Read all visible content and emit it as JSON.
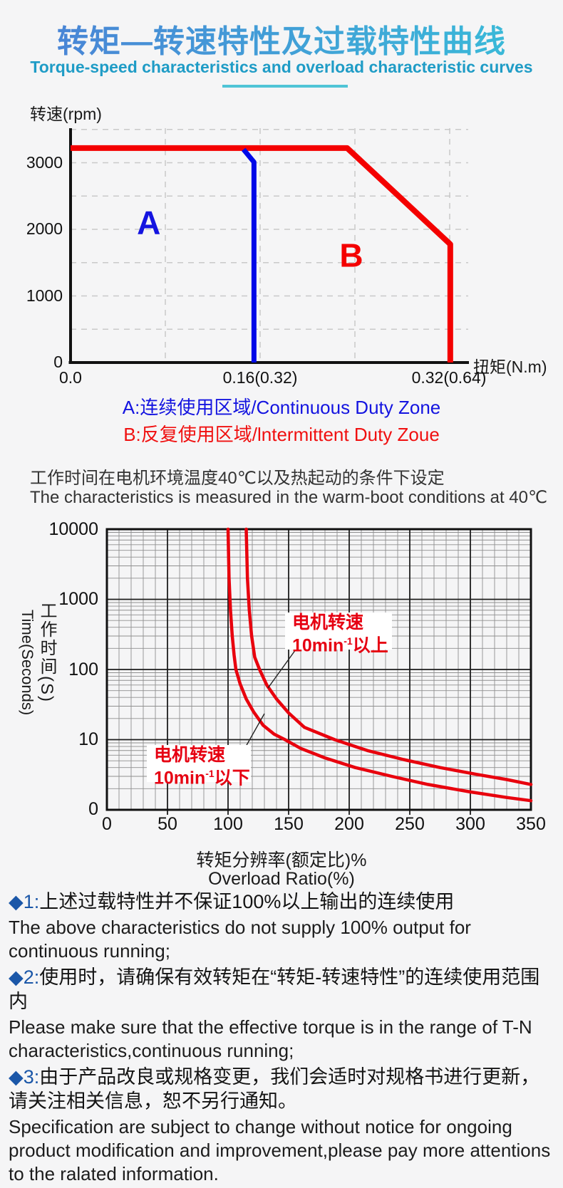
{
  "header": {
    "title": "转矩—转速特性及过载特性曲线",
    "subtitle": "Torque-speed characteristics and overload characteristic curves"
  },
  "chart1": {
    "y_axis_title": "转速(rpm)",
    "x_axis_title": "扭矩(N.m)",
    "y_ticks": [
      "0",
      "1000",
      "2000",
      "3000"
    ],
    "x_ticks": [
      "0.0",
      "0.16(0.32)",
      "0.32(0.64)"
    ],
    "zone_a_label": "A",
    "zone_b_label": "B"
  },
  "legend": {
    "a": "A:连续使用区域/Continuous Duty Zone",
    "b": "B:反复使用区域/lntermittent Duty Zoue"
  },
  "conditions": {
    "cn": "工作时间在电机环境温度40℃以及热起动的条件下设定",
    "en": "The characteristics is measured in the warm-boot conditions at 40℃"
  },
  "chart2": {
    "y_axis_title_cn": "工作时间(S)",
    "y_axis_title_en": "Time(Seconds)",
    "x_axis_title_cn": "转矩分辨率(额定比)%",
    "x_axis_title_en": "Overload Ratio(%)",
    "y_ticks": [
      "0",
      "10",
      "100",
      "1000",
      "10000"
    ],
    "x_ticks": [
      "0",
      "50",
      "100",
      "150",
      "200",
      "250",
      "300",
      "350"
    ],
    "callout_upper": {
      "line1": "电机转速",
      "prefix": "10min",
      "sup": "-1",
      "suffix": "以上"
    },
    "callout_lower": {
      "line1": "电机转速",
      "prefix": "10min",
      "sup": "-1",
      "suffix": "以下"
    }
  },
  "notes": [
    {
      "bullet": "◆1:",
      "cn": "上述过载特性并不保证100%以上输出的连续使用",
      "en": "The above characteristics do not supply 100% output for continuous running;"
    },
    {
      "bullet": "◆2:",
      "cn": "使用时，请确保有效转矩在“转矩-转速特性”的连续使用范围内",
      "en": "Please make sure that the effective torque is in the range of T-N characteristics,continuous running;"
    },
    {
      "bullet": "◆3:",
      "cn": "由于产品改良或规格变更，我们会适时对规格书进行更新，请关注相关信息，恕不另行通知。",
      "en": "Specification are subject to change without notice for ongoing product modification and improvement,please pay more attentions to the ralated information."
    }
  ],
  "chart_data": [
    {
      "type": "line",
      "title": "Torque-speed characteristic (T-N curve)",
      "xlabel": "扭矩(N.m)",
      "ylabel": "转速(rpm)",
      "xlim": [
        0,
        0.335
      ],
      "ylim": [
        0,
        3520
      ],
      "x_tick_values": [
        0,
        0.16,
        0.32
      ],
      "x_tick_labels": [
        "0.0",
        "0.16(0.32)",
        "0.32(0.64)"
      ],
      "y_tick_values": [
        0,
        1000,
        2000,
        3000
      ],
      "grid": "dashed light-gray, x every 0.08, y every 500",
      "grid_x": [
        0.08,
        0.16,
        0.24,
        0.32
      ],
      "grid_y": [
        500,
        1000,
        1500,
        2000,
        2500,
        3000,
        3500
      ],
      "series": [
        {
          "name": "intermittent-duty-boundary",
          "color": "#f40000",
          "width": 8,
          "points": [
            [
              0,
              3220
            ],
            [
              0.2335,
              3220
            ],
            [
              0.3185,
              1810
            ],
            [
              0.3205,
              1775
            ],
            [
              0.3205,
              0
            ]
          ]
        },
        {
          "name": "continuous-duty-boundary",
          "color": "#0008e8",
          "width": 7,
          "points": [
            [
              0.146,
              3200
            ],
            [
              0.1548,
              3010
            ],
            [
              0.1548,
              0
            ]
          ]
        }
      ],
      "annotations": [
        {
          "text": "A",
          "color": "#1414e0",
          "x": 0.066,
          "y": 1930
        },
        {
          "text": "B",
          "color": "#f40000",
          "x": 0.237,
          "y": 1440
        }
      ]
    },
    {
      "type": "line",
      "title": "Overload characteristic",
      "xlabel": "转矩分辨率(额定比)% / Overload Ratio(%)",
      "ylabel": "工作时间(S) / Time(Seconds)",
      "y_scale": "log",
      "xlim": [
        0,
        350
      ],
      "ylim": [
        1,
        10000
      ],
      "x_tick_values": [
        0,
        50,
        100,
        150,
        200,
        250,
        300,
        350
      ],
      "y_tick_values": [
        1,
        10,
        100,
        1000,
        10000
      ],
      "y_tick_labels": [
        "0",
        "10",
        "100",
        "1000",
        "10000"
      ],
      "grid": "full log grid, x minor every 10 / major every 50",
      "series": [
        {
          "name": "motor-speed-below-10min-1",
          "color": "#e8000d",
          "width": 4.5,
          "points": [
            [
              100,
              10000
            ],
            [
              100.8,
              2000
            ],
            [
              102,
              700
            ],
            [
              103.5,
              300
            ],
            [
              105,
              160
            ],
            [
              106.5,
              100
            ],
            [
              110,
              62
            ],
            [
              115,
              38
            ],
            [
              121,
              25
            ],
            [
              129,
              16
            ],
            [
              138,
              12
            ],
            [
              147,
              10
            ],
            [
              160,
              7.5
            ],
            [
              180,
              5.5
            ],
            [
              205,
              4.0
            ],
            [
              235,
              3.0
            ],
            [
              265,
              2.3
            ],
            [
              300,
              1.8
            ],
            [
              330,
              1.5
            ],
            [
              350,
              1.35
            ]
          ]
        },
        {
          "name": "motor-speed-above-10min-1",
          "color": "#e8000d",
          "width": 4.5,
          "points": [
            [
              115,
              10000
            ],
            [
              116,
              2000
            ],
            [
              117.5,
              700
            ],
            [
              119.5,
              300
            ],
            [
              122,
              150
            ],
            [
              126,
              100
            ],
            [
              132,
              60
            ],
            [
              140,
              38
            ],
            [
              150,
              24
            ],
            [
              163,
              15
            ],
            [
              188,
              10
            ],
            [
              215,
              7
            ],
            [
              245,
              5.2
            ],
            [
              275,
              4.0
            ],
            [
              305,
              3.2
            ],
            [
              330,
              2.7
            ],
            [
              350,
              2.3
            ]
          ]
        }
      ],
      "annotations": [
        {
          "text": "电机转速 10min⁻¹以上",
          "points_to": "motor-speed-above-10min-1"
        },
        {
          "text": "电机转速 10min⁻¹以下",
          "points_to": "motor-speed-below-10min-1"
        }
      ]
    }
  ]
}
